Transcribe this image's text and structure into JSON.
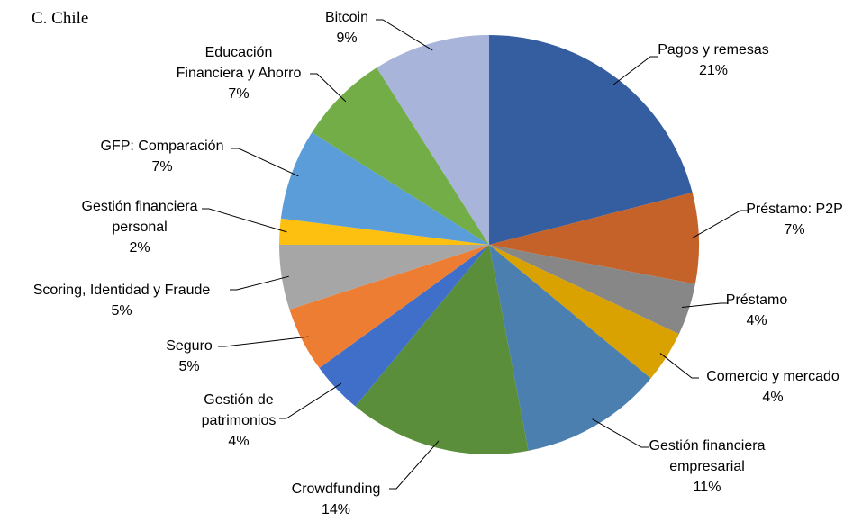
{
  "chart_data": {
    "type": "pie",
    "title": "C. Chile",
    "categories": [
      "Pagos y remesas",
      "Préstamo: P2P",
      "Préstamo",
      "Comercio y mercado",
      "Gestión financiera\nempresarial",
      "Crowdfunding",
      "Gestión de\npatrimonios",
      "Seguro",
      "Scoring, Identidad y Fraude",
      "Gestión financiera\npersonal",
      "GFP: Comparación",
      "Educación\nFinanciera y Ahorro",
      "Bitcoin"
    ],
    "values": [
      21,
      7,
      4,
      4,
      11,
      14,
      4,
      5,
      5,
      2,
      7,
      7,
      9
    ],
    "value_labels": [
      "21%",
      "7%",
      "4%",
      "4%",
      "11%",
      "14%",
      "4%",
      "5%",
      "5%",
      "2%",
      "7%",
      "7%",
      "9%"
    ],
    "colors": [
      "#355ea0",
      "#c5622a",
      "#878787",
      "#d9a200",
      "#4a7fb0",
      "#5a8e3a",
      "#3f6fc8",
      "#ee7d34",
      "#a6a6a6",
      "#fdc010",
      "#5b9dd9",
      "#72ad47",
      "#a8b4da"
    ]
  }
}
